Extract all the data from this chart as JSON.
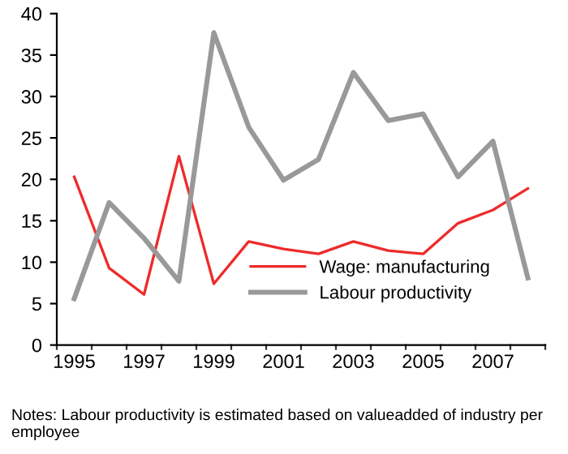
{
  "chart_data": {
    "type": "line",
    "categories": [
      "1995",
      null,
      "1997",
      null,
      "1999",
      null,
      "2001",
      null,
      "2003",
      null,
      "2005",
      null,
      "2007",
      null
    ],
    "series": [
      {
        "name": "Wage: manufacturing",
        "color": "#ee2b2b",
        "values": [
          20.3,
          9.3,
          6.1,
          22.8,
          7.4,
          12.5,
          11.6,
          11.0,
          12.5,
          11.4,
          11.0,
          14.7,
          16.3,
          18.9
        ]
      },
      {
        "name": "Labour productivity",
        "color": "#999999",
        "values": [
          5.6,
          17.2,
          12.9,
          7.7,
          37.7,
          26.3,
          19.9,
          22.4,
          32.9,
          27.1,
          27.9,
          20.3,
          24.6,
          8.1
        ]
      }
    ],
    "ylim": [
      0,
      40
    ],
    "yticks": [
      0,
      5,
      10,
      15,
      20,
      25,
      30,
      35,
      40
    ],
    "grid": false,
    "legend": "bottom right",
    "marker": "none",
    "line_style": "solid",
    "annotations": [
      "Notes: Labour productivity is estimated based on valueadded of industry per employee"
    ]
  }
}
